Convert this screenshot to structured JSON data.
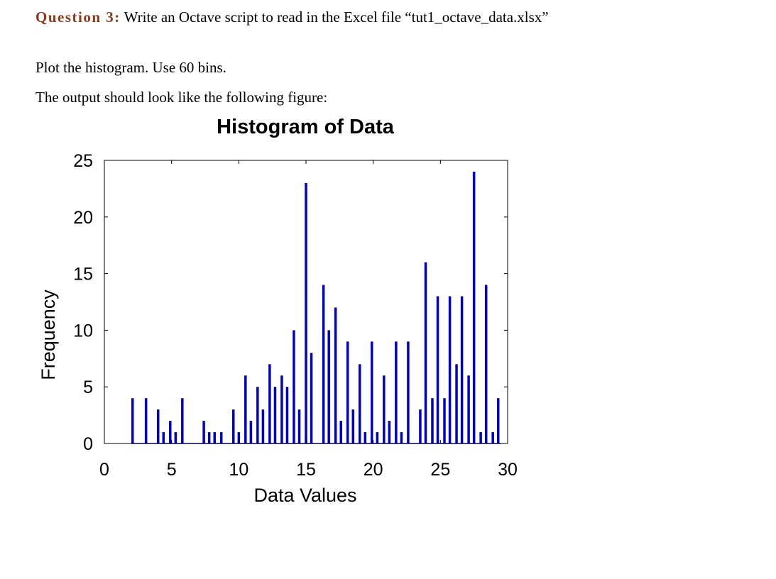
{
  "question": {
    "label": "Question 3:",
    "text": " Write an Octave script to read in the Excel file “tut1_octave_data.xlsx”"
  },
  "instructions": [
    "Plot the histogram. Use 60 bins.",
    "The output should look like the following figure:"
  ],
  "colors": {
    "bar": "#0000CC",
    "question_label": "#8B3A1E"
  },
  "chart_data": {
    "type": "bar",
    "title": "Histogram of Data",
    "xlabel": "Data Values",
    "ylabel": "Frequency",
    "xlim": [
      0,
      30
    ],
    "ylim": [
      0,
      25
    ],
    "xticks": [
      0,
      5,
      10,
      15,
      20,
      25,
      30
    ],
    "yticks": [
      0,
      5,
      10,
      15,
      20,
      25
    ],
    "grid": false,
    "bars": [
      {
        "x": 2.1,
        "y": 4
      },
      {
        "x": 3.1,
        "y": 4
      },
      {
        "x": 4.0,
        "y": 3
      },
      {
        "x": 4.4,
        "y": 1
      },
      {
        "x": 4.9,
        "y": 2
      },
      {
        "x": 5.3,
        "y": 1
      },
      {
        "x": 5.8,
        "y": 4
      },
      {
        "x": 7.4,
        "y": 2
      },
      {
        "x": 7.8,
        "y": 1
      },
      {
        "x": 8.2,
        "y": 1
      },
      {
        "x": 8.7,
        "y": 1
      },
      {
        "x": 9.6,
        "y": 3
      },
      {
        "x": 10.0,
        "y": 1
      },
      {
        "x": 10.5,
        "y": 6
      },
      {
        "x": 10.9,
        "y": 2
      },
      {
        "x": 11.4,
        "y": 5
      },
      {
        "x": 11.8,
        "y": 3
      },
      {
        "x": 12.3,
        "y": 7
      },
      {
        "x": 12.7,
        "y": 5
      },
      {
        "x": 13.2,
        "y": 6
      },
      {
        "x": 13.6,
        "y": 5
      },
      {
        "x": 14.1,
        "y": 10
      },
      {
        "x": 14.5,
        "y": 3
      },
      {
        "x": 15.0,
        "y": 23
      },
      {
        "x": 15.4,
        "y": 8
      },
      {
        "x": 16.3,
        "y": 14
      },
      {
        "x": 16.7,
        "y": 10
      },
      {
        "x": 17.2,
        "y": 12
      },
      {
        "x": 17.6,
        "y": 2
      },
      {
        "x": 18.1,
        "y": 9
      },
      {
        "x": 18.5,
        "y": 3
      },
      {
        "x": 19.0,
        "y": 7
      },
      {
        "x": 19.4,
        "y": 1
      },
      {
        "x": 19.9,
        "y": 9
      },
      {
        "x": 20.3,
        "y": 1
      },
      {
        "x": 20.8,
        "y": 6
      },
      {
        "x": 21.2,
        "y": 2
      },
      {
        "x": 21.7,
        "y": 9
      },
      {
        "x": 22.1,
        "y": 1
      },
      {
        "x": 22.6,
        "y": 9
      },
      {
        "x": 23.5,
        "y": 3
      },
      {
        "x": 23.9,
        "y": 16
      },
      {
        "x": 24.4,
        "y": 4
      },
      {
        "x": 24.8,
        "y": 13
      },
      {
        "x": 25.3,
        "y": 4
      },
      {
        "x": 25.7,
        "y": 13
      },
      {
        "x": 26.2,
        "y": 7
      },
      {
        "x": 26.6,
        "y": 13
      },
      {
        "x": 27.1,
        "y": 6
      },
      {
        "x": 27.5,
        "y": 24
      },
      {
        "x": 28.0,
        "y": 1
      },
      {
        "x": 28.4,
        "y": 14
      },
      {
        "x": 28.9,
        "y": 1
      },
      {
        "x": 29.3,
        "y": 4
      }
    ]
  }
}
